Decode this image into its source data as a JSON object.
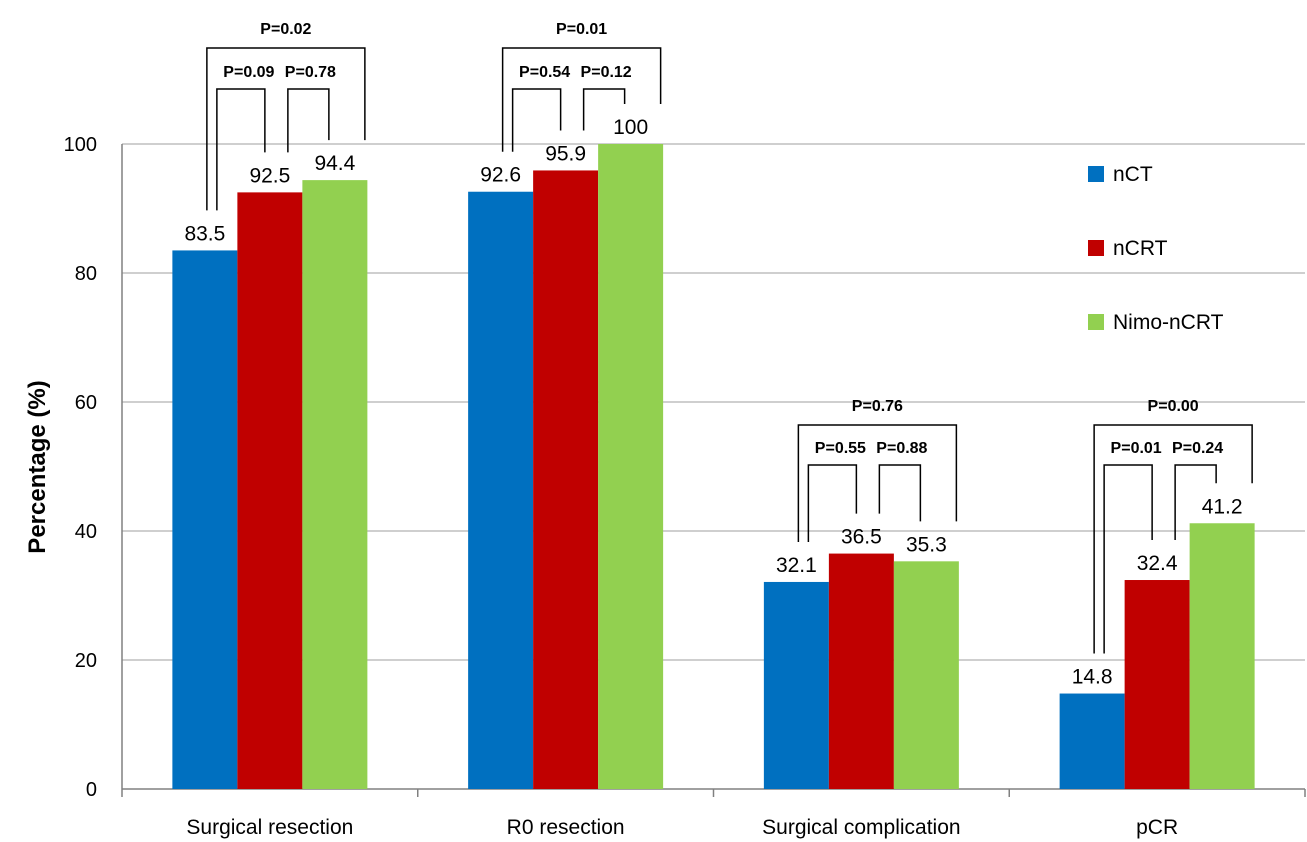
{
  "chart_data": {
    "type": "bar",
    "title": "",
    "xlabel": "",
    "ylabel": "Percentage (%)",
    "ylim": [
      0,
      100
    ],
    "yticks": [
      "0",
      "20",
      "40",
      "60",
      "80",
      "100"
    ],
    "grid": true,
    "legend_position": "right",
    "categories": [
      "Surgical resection",
      "R0 resection",
      "Surgical complication",
      "pCR"
    ],
    "series": [
      {
        "name": "nCT",
        "color": "#0070C0",
        "values": [
          83.5,
          92.6,
          32.1,
          14.8
        ],
        "labels": [
          "83.5",
          "92.6",
          "32.1",
          "14.8"
        ]
      },
      {
        "name": "nCRT",
        "color": "#C00000",
        "values": [
          92.5,
          95.9,
          36.5,
          32.4
        ],
        "labels": [
          "92.5",
          "95.9",
          "36.5",
          "32.4"
        ]
      },
      {
        "name": "Nimo-nCRT",
        "color": "#92D050",
        "values": [
          94.4,
          100,
          35.3,
          41.2
        ],
        "labels": [
          "94.4",
          "100",
          "35.3",
          "41.2"
        ]
      }
    ],
    "p_values": [
      {
        "overall": "P=0.02",
        "left": "P=0.09",
        "right": "P=0.78"
      },
      {
        "overall": "P=0.01",
        "left": "P=0.54",
        "right": "P=0.12"
      },
      {
        "overall": "P=0.76",
        "left": "P=0.55",
        "right": "P=0.88"
      },
      {
        "overall": "P=0.00",
        "left": "P=0.01",
        "right": "P=0.24"
      }
    ]
  }
}
